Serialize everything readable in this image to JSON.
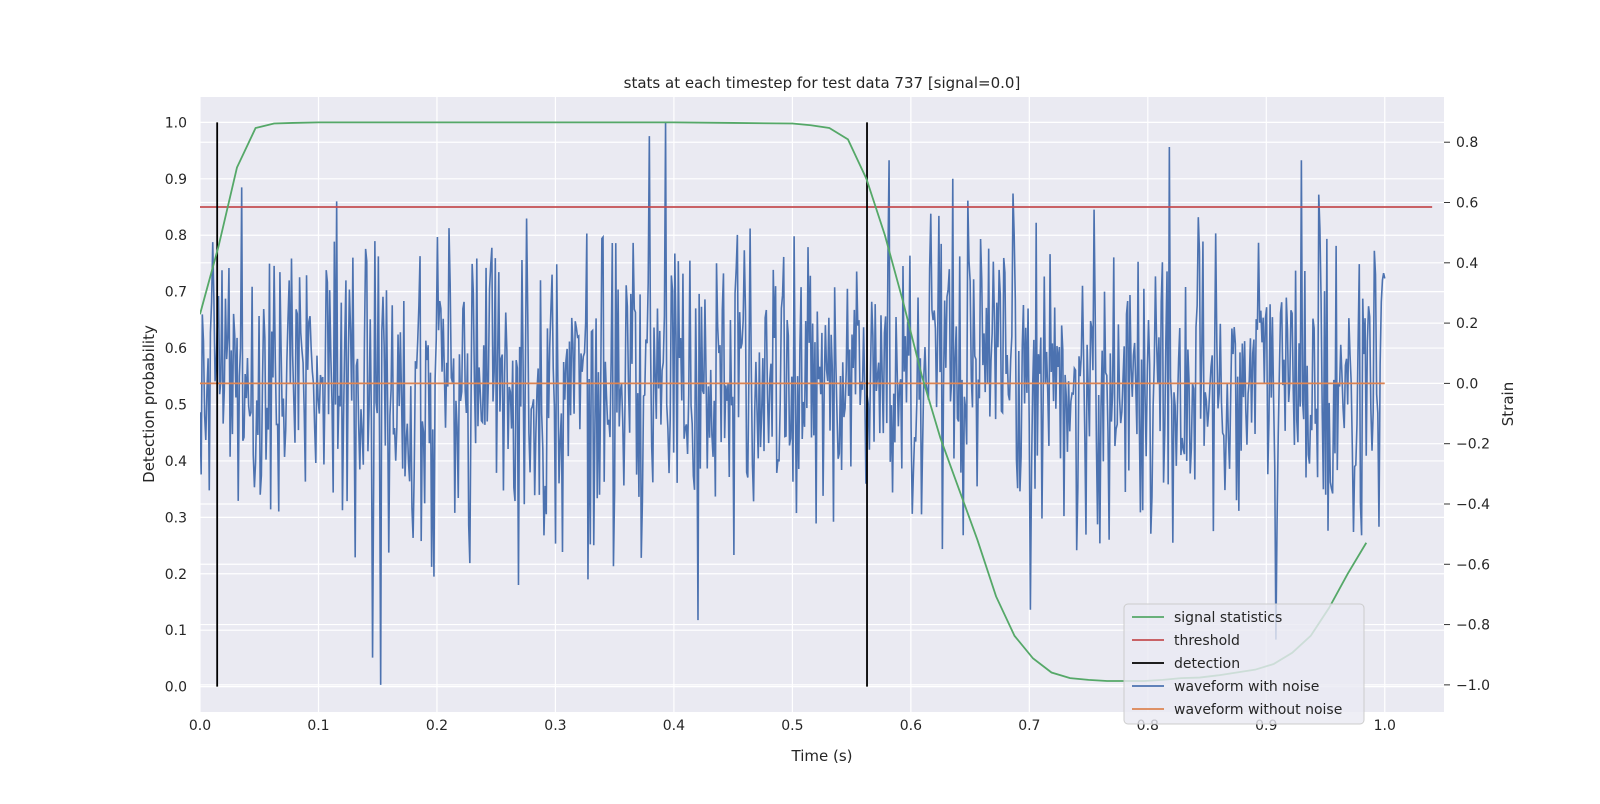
{
  "chart_data": {
    "type": "line",
    "title": "stats at each timestep for test data 737 [signal=0.0]",
    "xlabel": "Time (s)",
    "ylabel": "Detection probability",
    "y2label": "Strain",
    "xlim": [
      0.0,
      1.05
    ],
    "ylim": [
      -0.045,
      1.045
    ],
    "y2lim": [
      -1.09,
      0.95
    ],
    "xticks": [
      "0.0",
      "0.1",
      "0.2",
      "0.3",
      "0.4",
      "0.5",
      "0.6",
      "0.7",
      "0.8",
      "0.9",
      "1.0"
    ],
    "yticks": [
      "0.0",
      "0.1",
      "0.2",
      "0.3",
      "0.4",
      "0.5",
      "0.6",
      "0.7",
      "0.8",
      "0.9",
      "1.0"
    ],
    "y2ticks": [
      "−1.0",
      "−0.8",
      "−0.6",
      "−0.4",
      "−0.2",
      "0.0",
      "0.2",
      "0.4",
      "0.6",
      "0.8"
    ],
    "grid": true,
    "legend_position": "bottom-right",
    "colors": {
      "signal": "#55a868",
      "threshold": "#c44e52",
      "detection": "#000000",
      "noisy": "#4c72b0",
      "clean": "#dd8452",
      "background": "#eaeaf2",
      "grid": "#ffffff"
    },
    "legend": [
      "signal statistics",
      "threshold",
      "detection",
      "waveform with noise",
      "waveform without noise"
    ],
    "signal_statistics": {
      "x": [
        0.0,
        0.0156,
        0.0312,
        0.0469,
        0.0625,
        0.0781,
        0.1,
        0.2,
        0.3,
        0.4,
        0.45,
        0.5,
        0.5156,
        0.5312,
        0.5469,
        0.5625,
        0.5781,
        0.5937,
        0.6094,
        0.625,
        0.6406,
        0.6562,
        0.6719,
        0.6875,
        0.7031,
        0.7187,
        0.7344,
        0.75,
        0.7656,
        0.7812,
        0.7969,
        0.8125,
        0.8281,
        0.8437,
        0.8594,
        0.875,
        0.8906,
        0.9062,
        0.9219,
        0.9375,
        0.9531,
        0.9687,
        0.9844
      ],
      "y": [
        0.66,
        0.78,
        0.92,
        0.99,
        0.998,
        0.999,
        1.0,
        1.0,
        1.0,
        1.0,
        0.999,
        0.998,
        0.995,
        0.99,
        0.97,
        0.9,
        0.8,
        0.68,
        0.55,
        0.44,
        0.35,
        0.26,
        0.16,
        0.09,
        0.05,
        0.025,
        0.015,
        0.012,
        0.01,
        0.01,
        0.01,
        0.012,
        0.015,
        0.016,
        0.02,
        0.025,
        0.03,
        0.04,
        0.06,
        0.09,
        0.14,
        0.2,
        0.255
      ]
    },
    "threshold": 0.85,
    "threshold_x": [
      0.0,
      1.04
    ],
    "detections": [
      0.0145,
      0.563
    ],
    "waveform_without_noise": {
      "x": [
        0.0,
        1.0
      ],
      "y": [
        0.0,
        0.0
      ]
    },
    "waveform_with_noise": {
      "x_range": [
        0.0,
        1.0
      ],
      "n_points": 1024,
      "std": 0.25,
      "seed": 737,
      "notable_points": [
        {
          "x": 0.1523,
          "y": -1.0
        },
        {
          "x": 0.3925,
          "y": 0.865
        },
        {
          "x": 0.5815,
          "y": 0.74
        },
        {
          "x": 0.9085,
          "y": -0.85
        },
        {
          "x": 0.9295,
          "y": 0.74
        },
        {
          "x": 0.3275,
          "y": -0.65
        },
        {
          "x": 0.035,
          "y": 0.65
        }
      ]
    }
  }
}
